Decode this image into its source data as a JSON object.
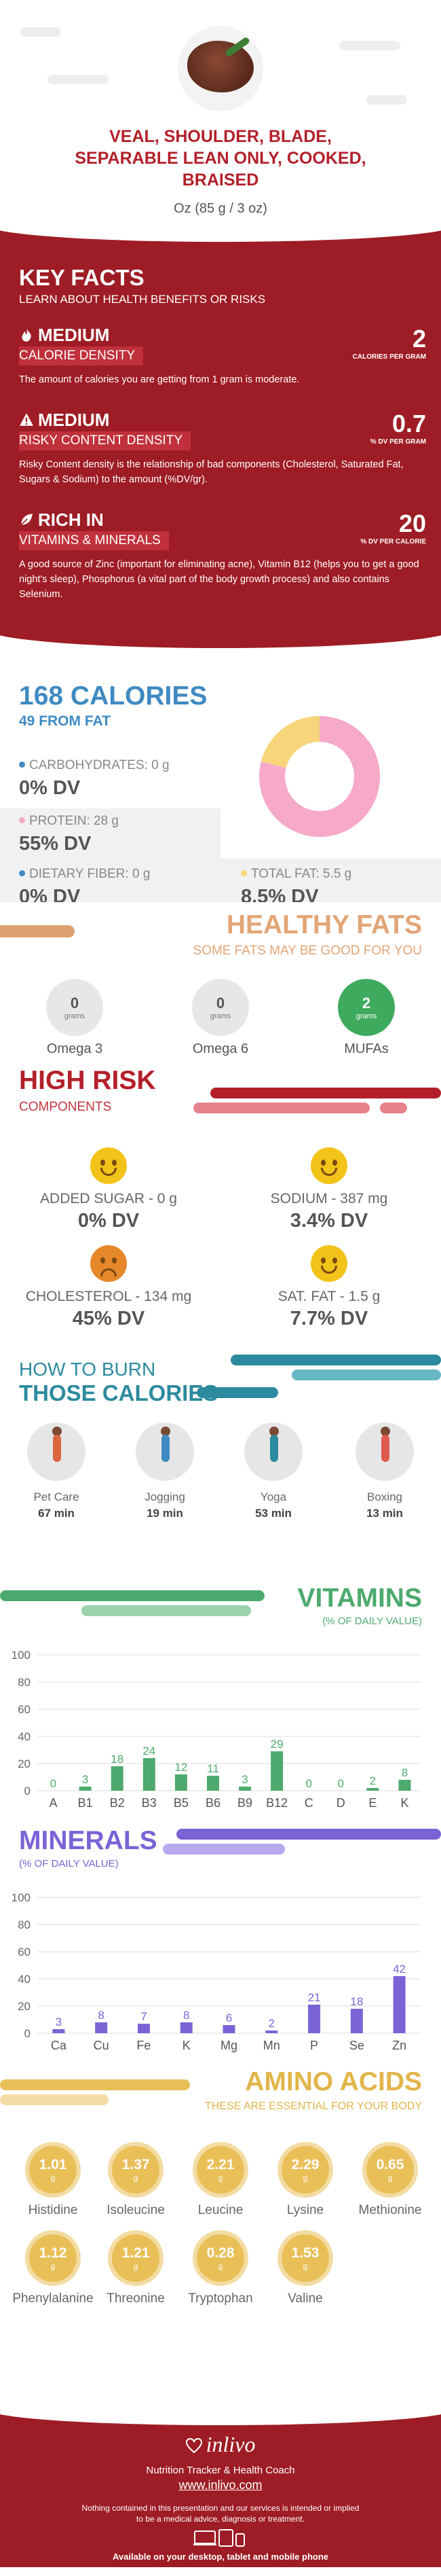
{
  "header": {
    "title_line1": "VEAL, SHOULDER, BLADE,",
    "title_line2": "SEPARABLE LEAN ONLY, COOKED,",
    "title_line3": "BRAISED",
    "serving": "Oz (85 g / 3 oz)"
  },
  "key_facts": {
    "title": "KEY FACTS",
    "subtitle": "LEARN ABOUT HEALTH BENEFITS OR RISKS",
    "items": [
      {
        "level": "MEDIUM",
        "label": "CALORIE DENSITY",
        "value": "2",
        "unit": "CALORIES PER GRAM",
        "desc": "The amount of calories you are getting from 1 gram is moderate."
      },
      {
        "level": "MEDIUM",
        "label": "RISKY CONTENT DENSITY",
        "value": "0.7",
        "unit": "% DV PER GRAM",
        "desc": "Risky Content density is the relationship of bad components (Cholesterol, Saturated Fat, Sugars & Sodium) to the amount (%DV/gr)."
      },
      {
        "level": "RICH  IN",
        "label": "VITAMINS & MINERALS",
        "value": "20",
        "unit": "% DV PER CALORIE",
        "desc": "A good source of Zinc (important for eliminating acne), Vitamin B12 (helps you to get a good night's sleep), Phosphorus (a vital part of the body growth process) and also contains Selenium."
      }
    ]
  },
  "calories": {
    "total": "168 CALORIES",
    "from_fat": "49 FROM FAT",
    "carbs_label": "CARBOHYDRATES: 0 g",
    "carbs_dv": "0% DV",
    "protein_label": "PROTEIN: 28 g",
    "protein_dv": "55% DV",
    "fiber_label": "DIETARY FIBER: 0 g",
    "fiber_dv": "0% DV",
    "fat_label": "TOTAL FAT: 5.5 g",
    "fat_dv": "8.5% DV",
    "donut": {
      "protein_fraction": 0.79,
      "fat_fraction": 0.21
    }
  },
  "healthy_fats": {
    "title": "HEALTHY FATS",
    "subtitle": "SOME FATS MAY BE GOOD FOR YOU",
    "items": [
      {
        "value": "0",
        "unit": "grams",
        "name": "Omega 3"
      },
      {
        "value": "0",
        "unit": "grams",
        "name": "Omega 6"
      },
      {
        "value": "2",
        "unit": "grams",
        "name": "MUFAs"
      }
    ]
  },
  "high_risk": {
    "title": "HIGH RISK",
    "subtitle": "COMPONENTS",
    "items": [
      {
        "name": "ADDED SUGAR - 0 g",
        "dv": "0% DV",
        "mood": "happy"
      },
      {
        "name": "SODIUM - 387 mg",
        "dv": "3.4% DV",
        "mood": "happy"
      },
      {
        "name": "CHOLESTEROL - 134 mg",
        "dv": "45% DV",
        "mood": "sad"
      },
      {
        "name": "SAT. FAT - 1.5 g",
        "dv": "7.7% DV",
        "mood": "happy"
      }
    ]
  },
  "burn": {
    "title1": "HOW TO BURN",
    "title2": "THOSE CALORIES",
    "items": [
      {
        "name": "Pet Care",
        "minutes": "67 min"
      },
      {
        "name": "Jogging",
        "minutes": "19 min"
      },
      {
        "name": "Yoga",
        "minutes": "53 min"
      },
      {
        "name": "Boxing",
        "minutes": "13 min"
      }
    ]
  },
  "vitamins": {
    "title": "VITAMINS",
    "subtitle": "(% OF DAILY VALUE)"
  },
  "minerals": {
    "title": "MINERALS",
    "subtitle": "(% OF DAILY VALUE)"
  },
  "chart_data": [
    {
      "type": "bar",
      "title": "VITAMINS",
      "ylabel": "(% OF DAILY VALUE)",
      "categories": [
        "A",
        "B1",
        "B2",
        "B3",
        "B5",
        "B6",
        "B9",
        "B12",
        "C",
        "D",
        "E",
        "K"
      ],
      "values": [
        0,
        3,
        18,
        24,
        12,
        11,
        3,
        29,
        0,
        0,
        2,
        8
      ],
      "ylim": [
        0,
        100
      ],
      "yticks": [
        0,
        20,
        40,
        60,
        80,
        100
      ],
      "grid": true,
      "bar_color": "#4daa6e"
    },
    {
      "type": "bar",
      "title": "MINERALS",
      "ylabel": "(% OF DAILY VALUE)",
      "categories": [
        "Ca",
        "Cu",
        "Fe",
        "K",
        "Mg",
        "Mn",
        "P",
        "Se",
        "Zn"
      ],
      "values": [
        3,
        8,
        7,
        8,
        6,
        2,
        21,
        18,
        42
      ],
      "ylim": [
        0,
        100
      ],
      "yticks": [
        0,
        20,
        40,
        60,
        80,
        100
      ],
      "grid": true,
      "bar_color": "#7b63d6"
    }
  ],
  "amino": {
    "title": "AMINO ACIDS",
    "subtitle": "THESE ARE ESSENTIAL FOR YOUR BODY",
    "unit": "g",
    "items": [
      {
        "value": "1.01",
        "name": "Histidine"
      },
      {
        "value": "1.37",
        "name": "Isoleucine"
      },
      {
        "value": "2.21",
        "name": "Leucine"
      },
      {
        "value": "2.29",
        "name": "Lysine"
      },
      {
        "value": "0.65",
        "name": "Methionine"
      },
      {
        "value": "1.12",
        "name": "Phenylalanine"
      },
      {
        "value": "1.21",
        "name": "Threonine"
      },
      {
        "value": "0.28",
        "name": "Tryptophan"
      },
      {
        "value": "1.53",
        "name": "Valine"
      }
    ]
  },
  "footer": {
    "brand": "inlivo",
    "tagline": "Nutrition Tracker & Health Coach",
    "url": "www.inlivo.com",
    "disclaimer": "Nothing contained in this presentation and our services is intended or implied to be a medical advice, diagnosis or treatment.",
    "available": "Available on your desktop, tablet and mobile phone"
  },
  "colors": {
    "brand_red": "#9e1c25",
    "blue": "#3f8ac2",
    "pink": "#f6a9c9",
    "yellow": "#f7d57b",
    "orange": "#e2a576",
    "teal": "#2c8a9e",
    "green": "#4daa6e",
    "purple": "#7b63d6",
    "gold": "#e2b54a"
  }
}
